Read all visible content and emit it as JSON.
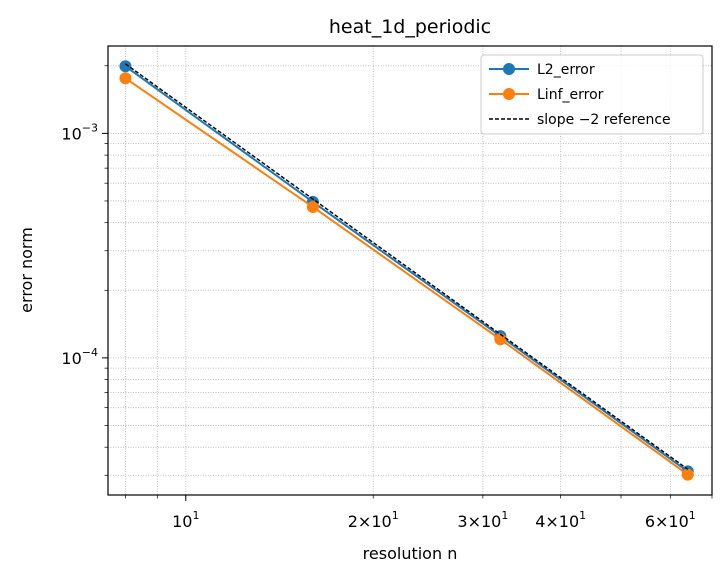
{
  "chart_data": {
    "type": "line",
    "title": "heat_1d_periodic",
    "xlabel": "resolution n",
    "ylabel": "error norm",
    "xscale": "log",
    "yscale": "log",
    "xlim": [
      7.5,
      70
    ],
    "ylim": [
      2.45e-05,
      0.00245
    ],
    "grid": true,
    "legend_position": "top-right",
    "x": [
      8,
      16,
      32,
      64
    ],
    "series": [
      {
        "name": "L2_error",
        "color": "#1f77b4",
        "marker": "circle",
        "style": "solid",
        "values": [
          0.00199,
          0.000495,
          0.000125,
          3.12e-05
        ]
      },
      {
        "name": "Linf_error",
        "color": "#ff7f0e",
        "marker": "circle",
        "style": "solid",
        "values": [
          0.00176,
          0.00047,
          0.000121,
          3.02e-05
        ]
      },
      {
        "name": "slope −2 reference",
        "color": "#000000",
        "marker": "none",
        "style": "dashed",
        "values": [
          0.00204,
          0.00051,
          0.0001275,
          3.19e-05
        ]
      }
    ],
    "x_ticks": [
      {
        "value": 10,
        "base": "10",
        "exp": "1"
      },
      {
        "value": 20,
        "base": "2×10",
        "exp": "1"
      },
      {
        "value": 30,
        "base": "3×10",
        "exp": "1"
      },
      {
        "value": 40,
        "base": "4×10",
        "exp": "1"
      },
      {
        "value": 60,
        "base": "6×10",
        "exp": "1"
      }
    ],
    "y_ticks": [
      {
        "value": 0.001,
        "base": "10",
        "exp": "−3"
      },
      {
        "value": 0.0001,
        "base": "10",
        "exp": "−4"
      }
    ]
  }
}
